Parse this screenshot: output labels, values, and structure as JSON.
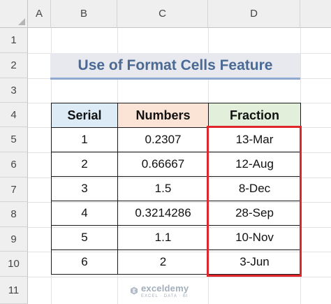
{
  "columns": [
    "A",
    "B",
    "C",
    "D"
  ],
  "rows": [
    "1",
    "2",
    "3",
    "4",
    "5",
    "6",
    "7",
    "8",
    "9",
    "10",
    "11"
  ],
  "title": "Use of Format Cells Feature",
  "table": {
    "headers": [
      "Serial",
      "Numbers",
      "Fraction"
    ],
    "rows": [
      [
        "1",
        "0.2307",
        "13-Mar"
      ],
      [
        "2",
        "0.66667",
        "12-Aug"
      ],
      [
        "3",
        "1.5",
        "8-Dec"
      ],
      [
        "4",
        "0.3214286",
        "28-Sep"
      ],
      [
        "5",
        "1.1",
        "10-Nov"
      ],
      [
        "6",
        "2",
        "3-Jun"
      ]
    ]
  },
  "watermark": {
    "name": "exceldemy",
    "tagline": "EXCEL · DATA · BI"
  },
  "colors": {
    "header_serial": "#ddebf7",
    "header_numbers": "#fbe4d5",
    "header_fraction": "#e2efda",
    "highlight": "#e0262b",
    "title_text": "#4a6a95"
  },
  "icons": {
    "watermark_logo": "exceldemy-logo-icon"
  }
}
